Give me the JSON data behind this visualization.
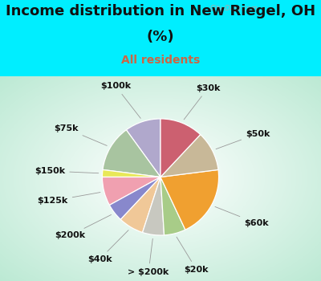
{
  "title_line1": "Income distribution in New Riegel, OH",
  "title_line2": "(%)",
  "subtitle": "All residents",
  "title_color": "#111111",
  "subtitle_color": "#cc6644",
  "top_bg_color": "#00eeff",
  "watermark": "City-Data.com",
  "labels": [
    "$100k",
    "$75k",
    "$150k",
    "$125k",
    "$200k",
    "$40k",
    "> $200k",
    "$20k",
    "$60k",
    "$50k",
    "$30k"
  ],
  "values": [
    10,
    13,
    2,
    8,
    5,
    7,
    6,
    6,
    20,
    11,
    12
  ],
  "colors": [
    "#b0a8cc",
    "#a8c4a0",
    "#e8e858",
    "#f0a0b0",
    "#8888cc",
    "#f0c898",
    "#c8c8c0",
    "#a8cc88",
    "#f0a030",
    "#c8b898",
    "#cc6070"
  ],
  "startangle": 90,
  "label_fontsize": 8,
  "title_fontsize": 13,
  "subtitle_fontsize": 10
}
